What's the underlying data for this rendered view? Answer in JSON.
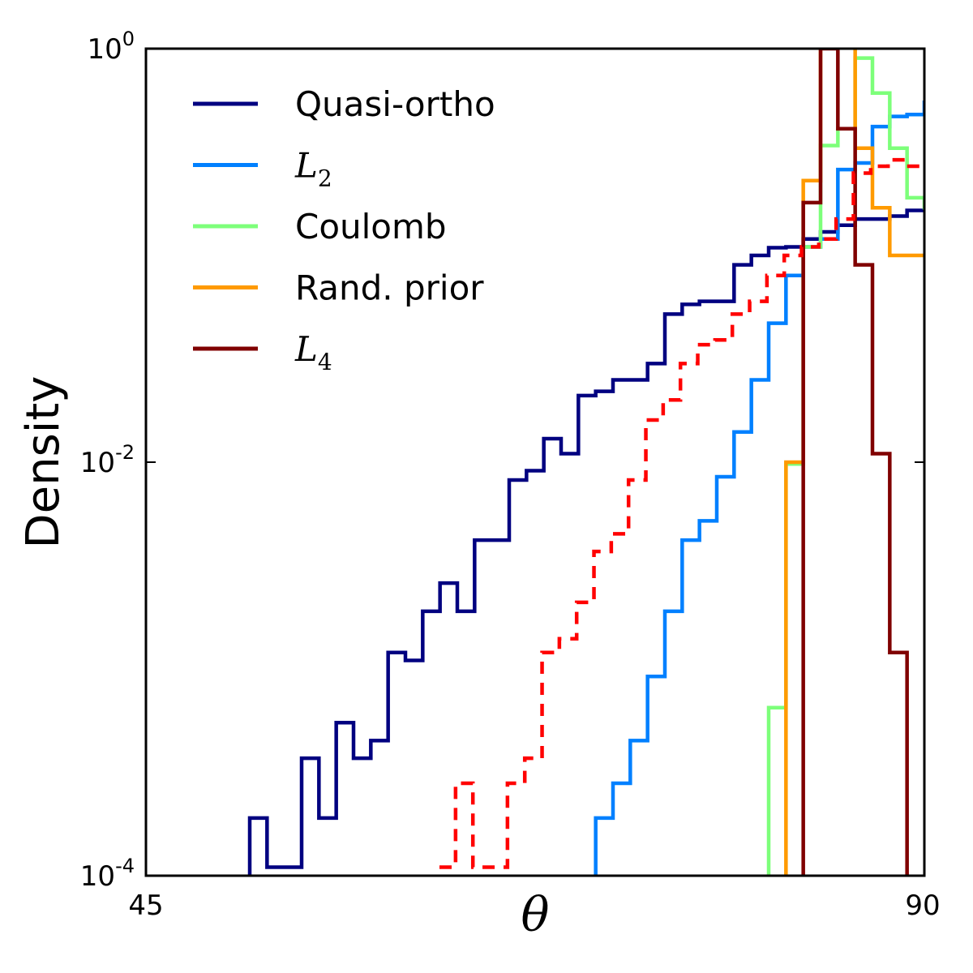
{
  "chart_data": {
    "type": "line",
    "subtype": "step-histogram",
    "xlabel": "θ",
    "ylabel": "Density",
    "xlim": [
      45,
      90
    ],
    "ylim": [
      0.0001,
      1
    ],
    "yscale": "log",
    "x_ticks": [
      {
        "value": 45,
        "label": "45"
      },
      {
        "value": 90,
        "label": "90"
      }
    ],
    "y_ticks": [
      {
        "value": 0.0001,
        "base": "10",
        "exp": "-4"
      },
      {
        "value": 0.01,
        "base": "10",
        "exp": "-2"
      },
      {
        "value": 1,
        "base": "10",
        "exp": "0"
      }
    ],
    "legend_position": "top-left",
    "series": [
      {
        "name": "Quasi-ortho",
        "legend_main": "Quasi-ortho",
        "legend_sub": "",
        "math": false,
        "color": "#000080",
        "dash": false,
        "x_start": 51,
        "bin_width": 1,
        "values": [
          0.00019,
          0.00011,
          0.00011,
          0.00037,
          0.00019,
          0.00055,
          0.00037,
          0.00045,
          0.0012,
          0.0011,
          0.0019,
          0.0026,
          0.0019,
          0.0042,
          0.0042,
          0.0082,
          0.0091,
          0.013,
          0.011,
          0.021,
          0.022,
          0.025,
          0.025,
          0.03,
          0.052,
          0.058,
          0.06,
          0.06,
          0.09,
          0.1,
          0.109,
          0.11,
          0.12,
          0.13,
          0.14,
          0.15,
          0.15,
          0.155,
          0.165,
          0.165,
          0.18,
          0.19
        ]
      },
      {
        "name": "L2",
        "legend_main": "L",
        "legend_sub": "2",
        "math": true,
        "color": "#0080ff",
        "dash": false,
        "x_start": 71,
        "bin_width": 1,
        "values": [
          0.00019,
          0.00028,
          0.00045,
          0.00092,
          0.0019,
          0.0042,
          0.0052,
          0.0085,
          0.014,
          0.025,
          0.047,
          0.08,
          0.11,
          0.12,
          0.26,
          0.28,
          0.42,
          0.47,
          0.48,
          0.55
        ]
      },
      {
        "name": "Coulomb",
        "legend_main": "Coulomb",
        "legend_sub": "",
        "math": false,
        "color": "#7dff7a",
        "dash": false,
        "x_start": 81,
        "bin_width": 1,
        "values": [
          0.00065,
          0.0098,
          0.11,
          0.34,
          0.41,
          0.9,
          0.61,
          0.33,
          0.19,
          0.17,
          0.16,
          0.15,
          0.16
        ]
      },
      {
        "name": "Rand. prior",
        "legend_main": "Rand. prior",
        "legend_sub": "",
        "math": false,
        "color": "#ff9a00",
        "dash": false,
        "x_start": 82,
        "bin_width": 1,
        "values": [
          0.01,
          0.23,
          1.9,
          1.2,
          0.33,
          0.17,
          0.1,
          0.1,
          0.1,
          0.052,
          0.042,
          0.032
        ]
      },
      {
        "name": "L4",
        "legend_main": "L",
        "legend_sub": "4",
        "math": true,
        "color": "#800000",
        "dash": false,
        "x_start": 83,
        "bin_width": 1,
        "values": [
          0.18,
          1.0,
          0.41,
          0.09,
          0.011,
          0.0012,
          7e-05
        ]
      },
      {
        "name": "",
        "legend_main": "",
        "legend_sub": "",
        "math": false,
        "color": "#ff0000",
        "dash": true,
        "x_start": 61.9,
        "bin_width": 1,
        "values": [
          0.00011,
          0.00028,
          0.00011,
          0.00011,
          0.00028,
          0.00037,
          0.0012,
          0.0014,
          0.0021,
          0.0037,
          0.0045,
          0.0082,
          0.016,
          0.02,
          0.03,
          0.037,
          0.039,
          0.052,
          0.06,
          0.08,
          0.1,
          0.11,
          0.12,
          0.15,
          0.25,
          0.27,
          0.29,
          0.27,
          0.27,
          0.3,
          0.32,
          0.32
        ]
      }
    ]
  }
}
